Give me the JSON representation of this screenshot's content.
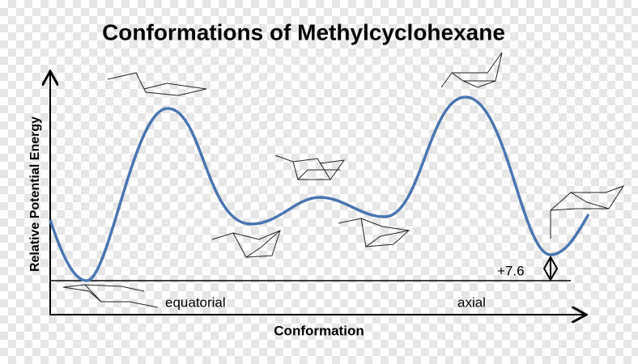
{
  "title": "Conformations of Methylcyclohexane",
  "y_axis_label": "Relative Potential Energy",
  "x_axis_label": "Conformation",
  "labels": {
    "equatorial": "equatorial",
    "axial": "axial",
    "energy_difference": "+7.6"
  }
}
